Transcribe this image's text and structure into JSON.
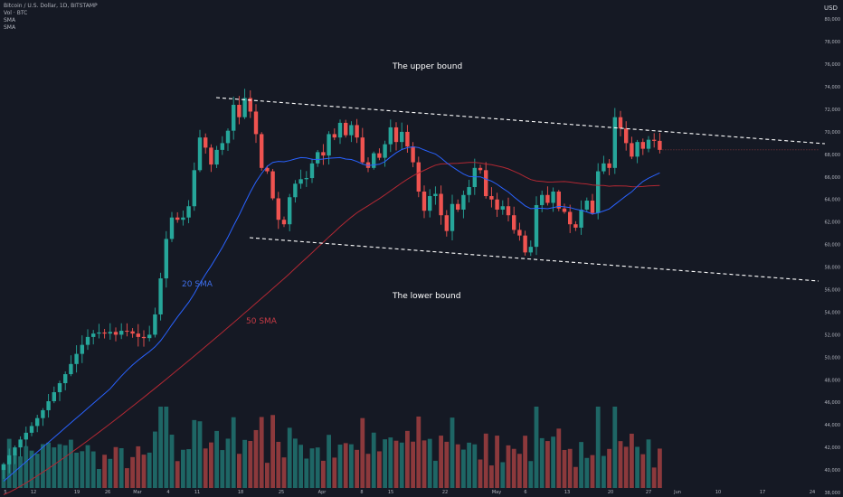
{
  "header": {
    "symbol": "Bitcoin / U.S. Dollar, 1D, BITSTAMP",
    "vol_label": "Vol · BTC",
    "sma1_label": "SMA",
    "sma2_label": "SMA",
    "currency": "USD"
  },
  "colors": {
    "background": "#151924",
    "up": "#26a69a",
    "down": "#ef5350",
    "sma20": "#2962ff",
    "sma50": "#b22833",
    "annotation": "#ffffff",
    "axis_text": "#b2b5be"
  },
  "annotations": {
    "upper_bound": "The upper bound",
    "lower_bound": "The lower bound",
    "sma20": "20 SMA",
    "sma50": "50 SMA"
  },
  "chart_data": {
    "type": "candlestick",
    "price_axis_ticks": [
      "80,000",
      "78,000",
      "76,000",
      "74,000",
      "72,000",
      "70,000",
      "68,000",
      "66,000",
      "64,000",
      "62,000",
      "60,000",
      "58,000",
      "56,000",
      "54,000",
      "52,000",
      "50,000",
      "48,000",
      "46,000",
      "44,000",
      "42,000",
      "40,000",
      "38,000"
    ],
    "ylim": [
      37600,
      81700
    ],
    "time_axis_ticks": [
      "5",
      "12",
      "19",
      "26",
      "Mar",
      "4",
      "11",
      "18",
      "25",
      "Apr",
      "8",
      "15",
      "22",
      "May",
      "6",
      "13",
      "20",
      "27",
      "Jun",
      "10",
      "17",
      "24"
    ],
    "close": [
      40500,
      41300,
      42000,
      42700,
      43300,
      43900,
      44600,
      45300,
      46100,
      46900,
      47700,
      48500,
      49400,
      50300,
      51100,
      51800,
      52100,
      52200,
      52100,
      52250,
      52000,
      52350,
      52300,
      52100,
      51800,
      51700,
      52000,
      53800,
      57000,
      60500,
      62400,
      62200,
      62400,
      63400,
      66600,
      69500,
      68600,
      67100,
      68400,
      69000,
      70100,
      72400,
      71300,
      73000,
      71800,
      69800,
      66800,
      66500,
      64100,
      62200,
      61800,
      64200,
      65400,
      65800,
      65900,
      67200,
      68200,
      67900,
      69800,
      69500,
      70800,
      69700,
      70600,
      69500,
      67300,
      66800,
      68100,
      67700,
      68900,
      70400,
      69100,
      70000,
      68700,
      67300,
      64700,
      63000,
      64300,
      64500,
      62600,
      61200,
      63600,
      63100,
      64400,
      65100,
      66800,
      66600,
      64300,
      64000,
      63100,
      63400,
      62600,
      61300,
      60800,
      59300,
      59800,
      63500,
      64400,
      63700,
      64700,
      63200,
      62900,
      61800,
      61500,
      63100,
      63900,
      62800,
      66500,
      67200,
      66800,
      71300,
      70300,
      69000,
      67800,
      69100,
      68500,
      69300,
      69200,
      68400
    ]
  }
}
